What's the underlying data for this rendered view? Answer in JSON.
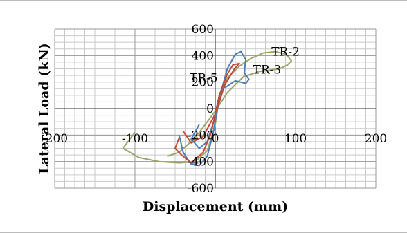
{
  "chart_data": {
    "type": "line",
    "title": "",
    "xlabel": "Displacement (mm)",
    "ylabel": "Lateral Load (kN)",
    "xlim": [
      -200,
      200
    ],
    "ylim": [
      -600,
      600
    ],
    "x_ticks": [
      -200,
      -100,
      0,
      100,
      200
    ],
    "y_ticks": [
      -600,
      -400,
      -200,
      0,
      200,
      400,
      600
    ],
    "x_tick_labels": [
      "-200",
      "-100",
      "0",
      "100",
      "200"
    ],
    "y_tick_labels": [
      "-600",
      "-400",
      "-200",
      "0",
      "200",
      "400",
      "600"
    ],
    "grid": true,
    "legend": "none",
    "series": [
      {
        "name": "TR-2",
        "color": "#9aa66a",
        "points": [
          [
            -100,
            -180
          ],
          [
            -115,
            -300
          ],
          [
            -95,
            -370
          ],
          [
            -70,
            -400
          ],
          [
            -45,
            -410
          ],
          [
            -25,
            -400
          ],
          [
            -10,
            -320
          ],
          [
            0,
            -120
          ],
          [
            5,
            80
          ],
          [
            15,
            230
          ],
          [
            30,
            320
          ],
          [
            45,
            380
          ],
          [
            60,
            420
          ],
          [
            75,
            430
          ],
          [
            88,
            410
          ],
          [
            95,
            360
          ],
          [
            90,
            330
          ],
          [
            80,
            300
          ],
          [
            55,
            280
          ],
          [
            35,
            240
          ],
          [
            15,
            120
          ],
          [
            0,
            -20
          ],
          [
            -25,
            -220
          ],
          [
            -45,
            -330
          ],
          [
            -60,
            -360
          ]
        ]
      },
      {
        "name": "TR-3",
        "color": "#4a7db8",
        "points": [
          [
            -45,
            -200
          ],
          [
            -40,
            -330
          ],
          [
            -30,
            -420
          ],
          [
            -20,
            -430
          ],
          [
            -10,
            -360
          ],
          [
            -3,
            -200
          ],
          [
            5,
            80
          ],
          [
            15,
            300
          ],
          [
            25,
            410
          ],
          [
            32,
            430
          ],
          [
            38,
            370
          ],
          [
            36,
            270
          ],
          [
            42,
            220
          ],
          [
            38,
            190
          ],
          [
            25,
            210
          ],
          [
            10,
            150
          ],
          [
            0,
            -60
          ],
          [
            -10,
            -250
          ],
          [
            -20,
            -300
          ],
          [
            -30,
            -230
          ],
          [
            -20,
            -120
          ]
        ]
      },
      {
        "name": "TR-5",
        "color": "#c04a3a",
        "points": [
          [
            -45,
            -220
          ],
          [
            -50,
            -300
          ],
          [
            -42,
            -350
          ],
          [
            -30,
            -410
          ],
          [
            -15,
            -330
          ],
          [
            -5,
            -180
          ],
          [
            5,
            100
          ],
          [
            15,
            260
          ],
          [
            22,
            330
          ],
          [
            30,
            340
          ],
          [
            24,
            300
          ],
          [
            12,
            180
          ],
          [
            0,
            -40
          ],
          [
            -15,
            -210
          ],
          [
            -30,
            -260
          ],
          [
            -40,
            -170
          ]
        ]
      }
    ],
    "annotations": [
      {
        "text": "TR-2",
        "x": 70,
        "y": 400
      },
      {
        "text": "TR-3",
        "x": 47,
        "y": 263
      },
      {
        "text": "TR-5",
        "x": -32,
        "y": 200
      }
    ]
  }
}
